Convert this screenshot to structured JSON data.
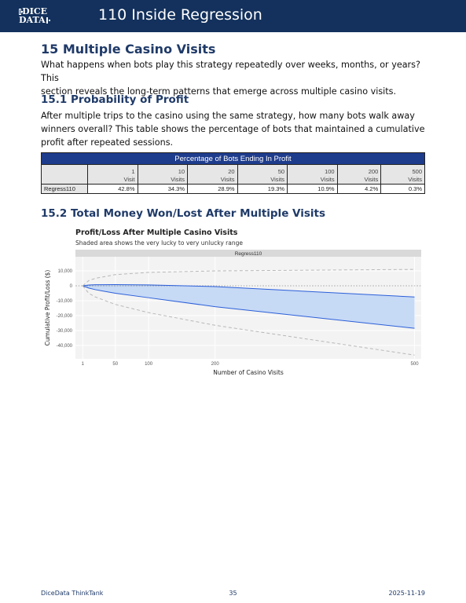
{
  "header": {
    "logo_line1": "DICE",
    "logo_line2": "DATA",
    "title": "110 Inside Regression"
  },
  "section": {
    "title": "15 Multiple Casino Visits",
    "intro_lines": [
      "What happens when bots play this strategy repeatedly over weeks, months, or years? This",
      "section reveals the long-term patterns that emerge across multiple casino visits."
    ]
  },
  "probability": {
    "heading": "15.1 Probability of Profit",
    "text_lines": [
      "After multiple trips to the casino using the same strategy, how many bots walk away",
      "winners overall? This table shows the percentage of bots that maintained a cumulative",
      "profit after repeated sessions."
    ],
    "table": {
      "title": "Percentage of Bots Ending In Profit",
      "columns": [
        {
          "count": "1",
          "unit": "Visit"
        },
        {
          "count": "10",
          "unit": "Visits"
        },
        {
          "count": "20",
          "unit": "Visits"
        },
        {
          "count": "50",
          "unit": "Visits"
        },
        {
          "count": "100",
          "unit": "Visits"
        },
        {
          "count": "200",
          "unit": "Visits"
        },
        {
          "count": "500",
          "unit": "Visits"
        }
      ],
      "rows": [
        {
          "name": "Regress110",
          "values": [
            "42.8%",
            "34.3%",
            "28.9%",
            "19.3%",
            "10.9%",
            "4.2%",
            "0.3%"
          ]
        }
      ]
    }
  },
  "money": {
    "heading": "15.2 Total Money Won/Lost After Multiple Visits",
    "chart_title": "Profit/Loss After Multiple Casino Visits",
    "chart_subtitle": "Shaded area shows the very lucky to very unlucky range"
  },
  "chart_data": {
    "type": "area",
    "title": "Profit/Loss After Multiple Casino Visits",
    "subtitle": "Shaded area shows the very lucky to very unlucky range",
    "facet_label": "Regress110",
    "xlabel": "Number of Casino Visits",
    "ylabel": "Cumulative Profit/Loss ($)",
    "xlim": [
      -10,
      510
    ],
    "ylim": [
      -49000,
      19500
    ],
    "x_ticks": [
      1,
      50,
      100,
      200,
      500
    ],
    "y_ticks": [
      10000,
      0,
      -10000,
      -20000,
      -30000,
      -40000
    ],
    "y_tick_labels": [
      "10,000",
      "0",
      "-10,000",
      "-20,000",
      "-30,000",
      "-40,000"
    ],
    "grid": true,
    "reference_line_y": 0,
    "x": [
      1,
      10,
      20,
      50,
      100,
      200,
      500
    ],
    "series": [
      {
        "role": "shaded band upper",
        "values": [
          0,
          500,
          700,
          800,
          600,
          -500,
          -7500
        ]
      },
      {
        "role": "shaded band lower",
        "values": [
          0,
          -1500,
          -2600,
          -5000,
          -8000,
          -14000,
          -28500
        ]
      },
      {
        "role": "dashed extreme upper",
        "values": [
          0,
          3500,
          5000,
          7500,
          9000,
          10000,
          11000
        ]
      },
      {
        "role": "dashed extreme lower",
        "values": [
          0,
          -5000,
          -7500,
          -12500,
          -18000,
          -26500,
          -46500
        ]
      }
    ],
    "colors": {
      "band": "#c6d9f5",
      "band_line": "#2b5fd9",
      "extreme": "#b8b8b8"
    }
  },
  "footer": {
    "left": "DiceData ThinkTank",
    "center": "35",
    "right": "2025-11-19"
  }
}
